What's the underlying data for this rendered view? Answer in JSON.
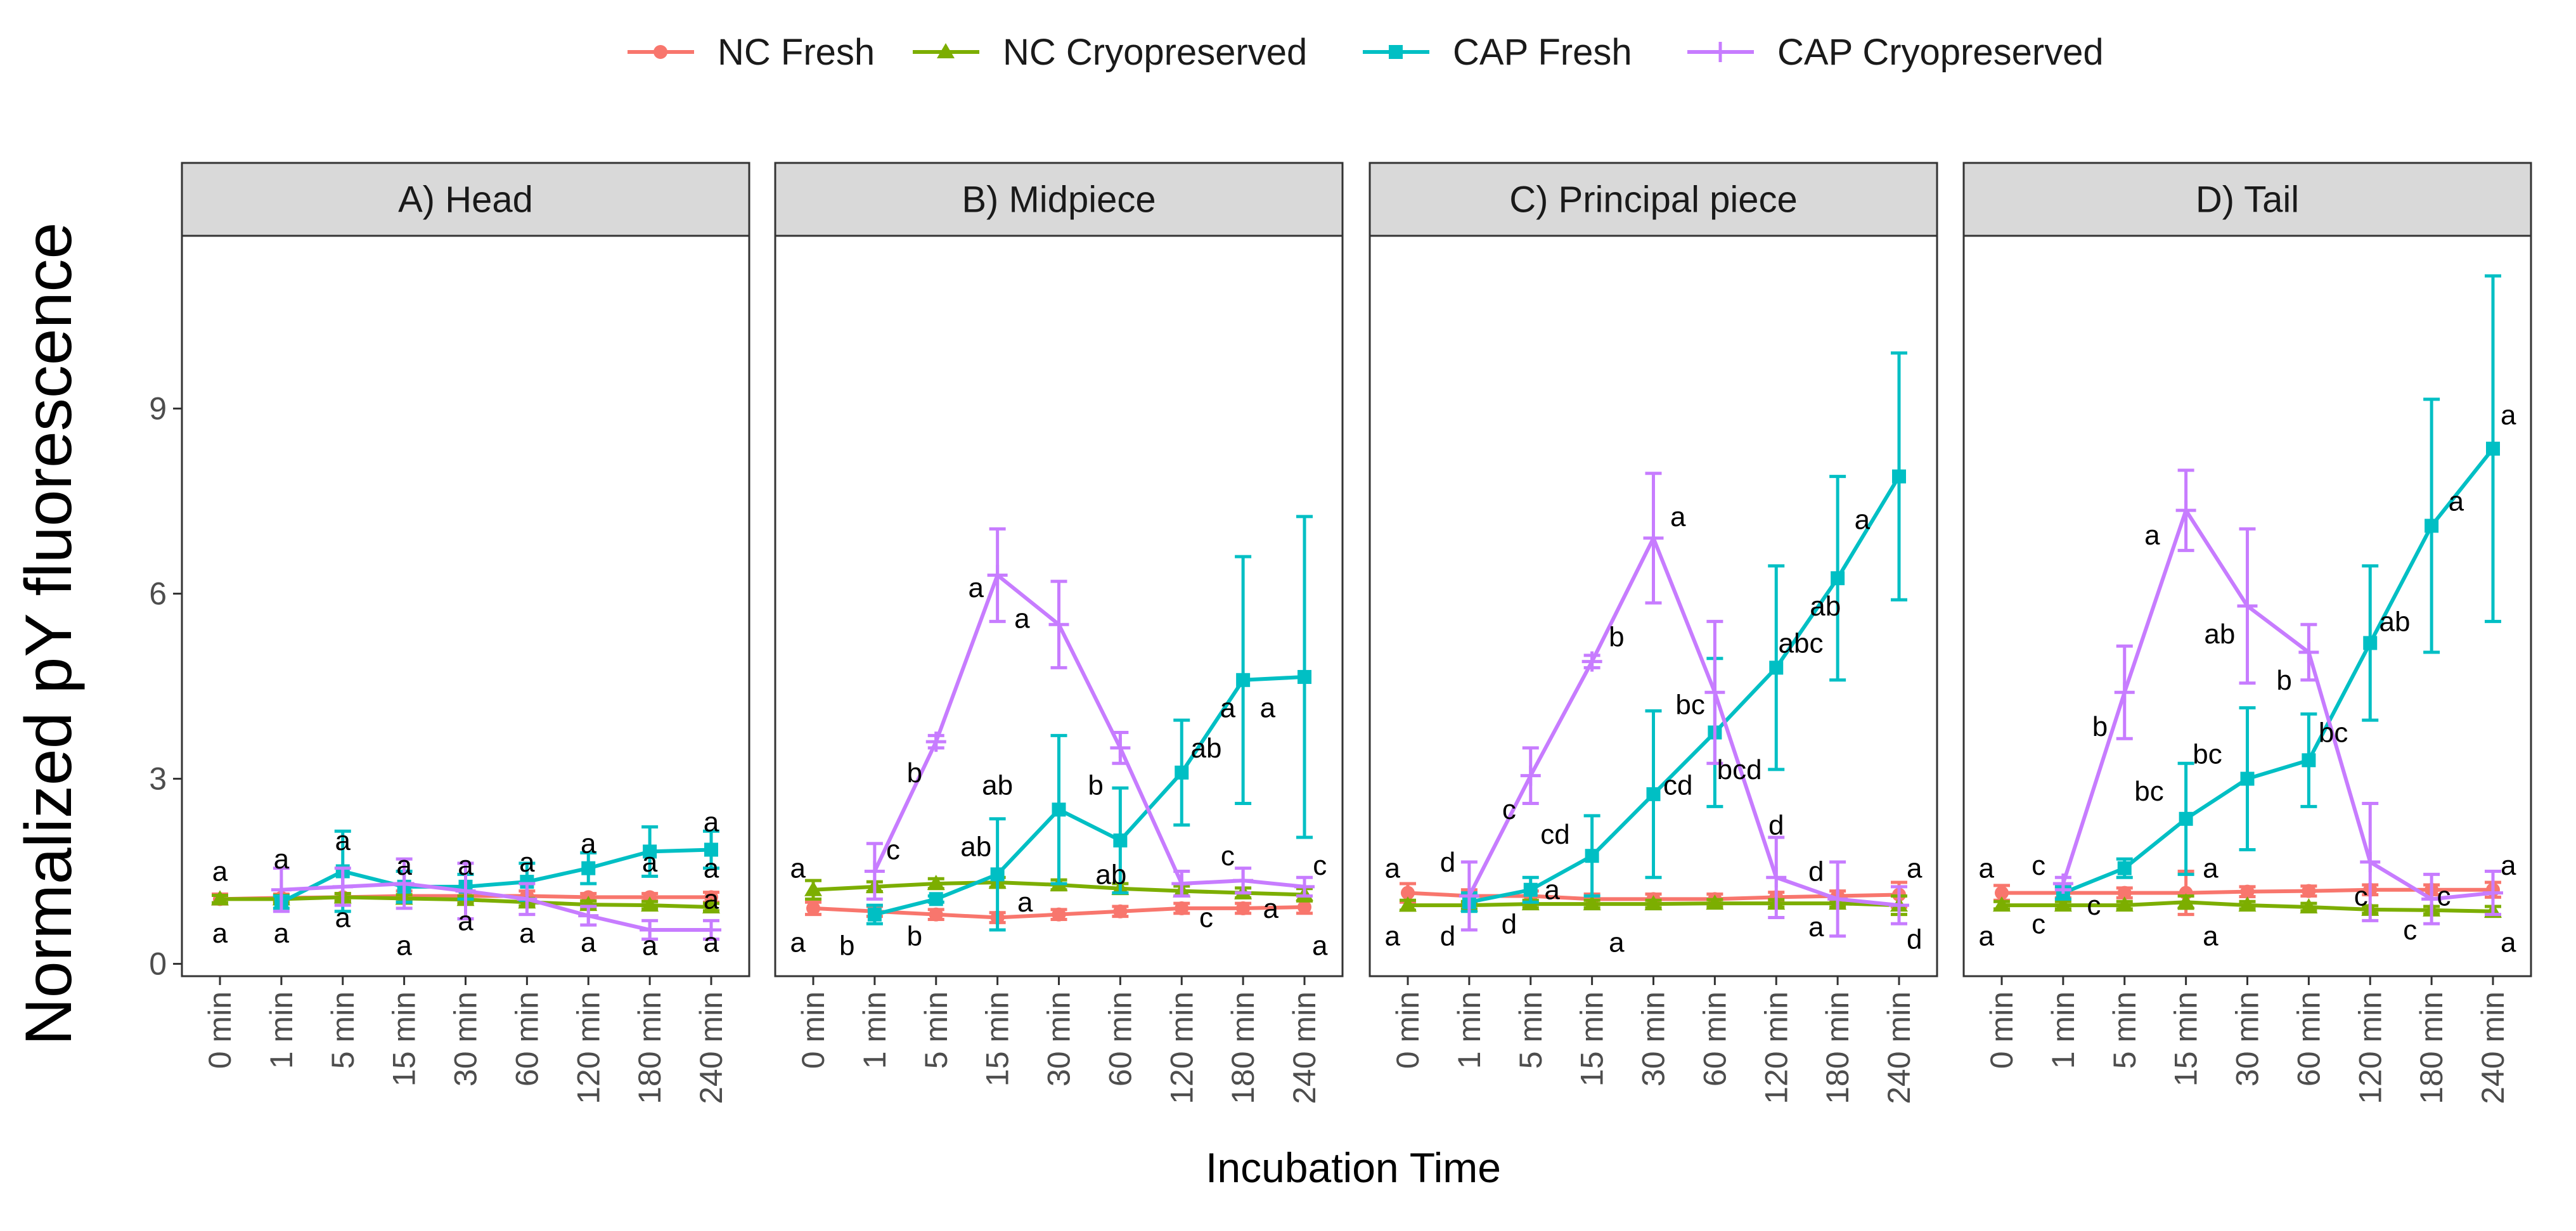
{
  "chart_data": {
    "type": "line",
    "ylabel": "Normalized pY fluorescence",
    "xlabel": "Incubation Time",
    "categories": [
      "0 min",
      "1 min",
      "5 min",
      "15 min",
      "30 min",
      "60 min",
      "120 min",
      "180 min",
      "240 min"
    ],
    "ylim": [
      -0.2,
      11.8
    ],
    "yticks": [
      0,
      3,
      6,
      9
    ],
    "grid": false,
    "legend_position": "top",
    "colors": {
      "NC Fresh": "#f8766d",
      "NC Cryopreserved": "#7cae00",
      "CAP Fresh": "#00bfc4",
      "CAP Cryopreserved": "#c77cff"
    },
    "legend": [
      {
        "name": "NC Fresh",
        "marker": "circle"
      },
      {
        "name": "NC Cryopreserved",
        "marker": "triangle"
      },
      {
        "name": "CAP Fresh",
        "marker": "square"
      },
      {
        "name": "CAP Cryopreserved",
        "marker": "cross"
      }
    ],
    "panels": [
      {
        "title": "A)  Head",
        "series": [
          {
            "name": "NC Fresh",
            "values": [
              1.05,
              1.07,
              1.08,
              1.1,
              1.1,
              1.1,
              1.08,
              1.08,
              1.08
            ],
            "err": [
              0.08,
              0.06,
              0.06,
              0.08,
              0.08,
              0.08,
              0.06,
              0.06,
              0.08
            ]
          },
          {
            "name": "NC Cryopreserved",
            "values": [
              1.05,
              1.05,
              1.08,
              1.06,
              1.04,
              1.0,
              0.96,
              0.95,
              0.92
            ],
            "err": [
              0.06,
              0.06,
              0.06,
              0.06,
              0.06,
              0.06,
              0.06,
              0.06,
              0.06
            ]
          },
          {
            "name": "CAP Fresh",
            "values": [
              null,
              1.0,
              1.5,
              1.25,
              1.25,
              1.33,
              1.55,
              1.82,
              1.85
            ],
            "err": [
              0,
              0.1,
              0.65,
              0.25,
              0.2,
              0.3,
              0.25,
              0.4,
              0.3
            ]
          },
          {
            "name": "CAP Cryopreserved",
            "values": [
              null,
              1.2,
              1.25,
              1.3,
              1.18,
              1.05,
              0.78,
              0.55,
              0.55
            ],
            "err": [
              0,
              0.35,
              0.3,
              0.4,
              0.45,
              0.25,
              0.15,
              0.15,
              0.15
            ]
          }
        ],
        "letters": [
          {
            "x": 0,
            "y": 1.5,
            "text": "a"
          },
          {
            "x": 0,
            "y": 0.5,
            "text": "a"
          },
          {
            "x": 1,
            "y": 1.7,
            "text": "a"
          },
          {
            "x": 1,
            "y": 0.5,
            "text": "a"
          },
          {
            "x": 2,
            "y": 2.0,
            "text": "a"
          },
          {
            "x": 2,
            "y": 0.75,
            "text": "a"
          },
          {
            "x": 3,
            "y": 1.6,
            "text": "a"
          },
          {
            "x": 3,
            "y": 1.6,
            "text": "a"
          },
          {
            "x": 3,
            "y": 0.3,
            "text": "a"
          },
          {
            "x": 4,
            "y": 1.6,
            "text": "a"
          },
          {
            "x": 4,
            "y": 0.7,
            "text": "a"
          },
          {
            "x": 5,
            "y": 1.65,
            "text": "a"
          },
          {
            "x": 5,
            "y": 0.5,
            "text": "a"
          },
          {
            "x": 6,
            "y": 1.95,
            "text": "a"
          },
          {
            "x": 6,
            "y": 0.35,
            "text": "a"
          },
          {
            "x": 7,
            "y": 1.65,
            "text": "a"
          },
          {
            "x": 7,
            "y": 0.3,
            "text": "a"
          },
          {
            "x": 8,
            "y": 2.3,
            "text": "a"
          },
          {
            "x": 8,
            "y": 1.55,
            "text": "a"
          },
          {
            "x": 8,
            "y": 1.05,
            "text": "a"
          },
          {
            "x": 8,
            "y": 0.35,
            "text": "a"
          }
        ]
      },
      {
        "title": "B)  Midpiece",
        "series": [
          {
            "name": "NC Fresh",
            "values": [
              0.9,
              0.85,
              0.8,
              0.75,
              0.8,
              0.85,
              0.9,
              0.9,
              0.92
            ],
            "err": [
              0.1,
              0.08,
              0.08,
              0.08,
              0.08,
              0.08,
              0.08,
              0.08,
              0.1
            ]
          },
          {
            "name": "NC Cryopreserved",
            "values": [
              1.2,
              1.25,
              1.3,
              1.32,
              1.28,
              1.22,
              1.18,
              1.15,
              1.12
            ],
            "err": [
              0.15,
              0.08,
              0.08,
              0.08,
              0.08,
              0.08,
              0.08,
              0.08,
              0.1
            ]
          },
          {
            "name": "CAP Fresh",
            "values": [
              null,
              0.8,
              1.05,
              1.45,
              2.5,
              2.0,
              3.1,
              4.6,
              4.65
            ],
            "err": [
              0,
              0.15,
              0.05,
              0.9,
              1.2,
              0.85,
              0.85,
              2.0,
              2.6
            ]
          },
          {
            "name": "CAP Cryopreserved",
            "values": [
              null,
              1.5,
              3.6,
              6.3,
              5.5,
              3.5,
              1.3,
              1.35,
              1.25
            ],
            "err": [
              0,
              0.45,
              0.1,
              0.75,
              0.7,
              0.25,
              0.2,
              0.2,
              0.15
            ]
          }
        ],
        "letters": [
          {
            "x": -0.25,
            "y": 1.55,
            "text": "a"
          },
          {
            "x": -0.25,
            "y": 0.35,
            "text": "a"
          },
          {
            "x": 0.55,
            "y": 0.3,
            "text": "b"
          },
          {
            "x": 1.3,
            "y": 1.85,
            "text": "c"
          },
          {
            "x": 1.65,
            "y": 3.1,
            "text": "b"
          },
          {
            "x": 1.65,
            "y": 0.45,
            "text": "b"
          },
          {
            "x": 2.65,
            "y": 6.1,
            "text": "a"
          },
          {
            "x": 2.65,
            "y": 1.9,
            "text": "ab"
          },
          {
            "x": 3.45,
            "y": 1.0,
            "text": "a"
          },
          {
            "x": 3.4,
            "y": 5.6,
            "text": "a"
          },
          {
            "x": 3.0,
            "y": 2.9,
            "text": "ab"
          },
          {
            "x": 4.6,
            "y": 2.9,
            "text": "b"
          },
          {
            "x": 4.85,
            "y": 1.45,
            "text": "ab"
          },
          {
            "x": 6.4,
            "y": 3.5,
            "text": "ab"
          },
          {
            "x": 6.4,
            "y": 0.75,
            "text": "c"
          },
          {
            "x": 6.75,
            "y": 4.15,
            "text": "a"
          },
          {
            "x": 6.75,
            "y": 1.75,
            "text": "c"
          },
          {
            "x": 7.4,
            "y": 4.15,
            "text": "a"
          },
          {
            "x": 7.45,
            "y": 0.9,
            "text": "a"
          },
          {
            "x": 8.25,
            "y": 1.6,
            "text": "c"
          },
          {
            "x": 8.25,
            "y": 0.3,
            "text": "a"
          }
        ]
      },
      {
        "title": "C)  Principal piece",
        "series": [
          {
            "name": "NC Fresh",
            "values": [
              1.15,
              1.1,
              1.1,
              1.05,
              1.05,
              1.05,
              1.08,
              1.1,
              1.12
            ],
            "err": [
              0.15,
              0.1,
              0.08,
              0.08,
              0.08,
              0.08,
              0.08,
              0.08,
              0.2
            ]
          },
          {
            "name": "NC Cryopreserved",
            "values": [
              0.95,
              0.95,
              0.97,
              0.97,
              0.97,
              0.98,
              0.98,
              0.98,
              0.95
            ],
            "err": [
              0.08,
              0.06,
              0.06,
              0.06,
              0.06,
              0.06,
              0.06,
              0.06,
              0.15
            ]
          },
          {
            "name": "CAP Fresh",
            "values": [
              null,
              1.0,
              1.2,
              1.75,
              2.75,
              3.75,
              4.8,
              6.25,
              7.9
            ],
            "err": [
              0,
              0.15,
              0.2,
              0.65,
              1.35,
              1.2,
              1.65,
              1.65,
              2.0
            ]
          },
          {
            "name": "CAP Cryopreserved",
            "values": [
              null,
              1.1,
              3.05,
              4.9,
              6.9,
              4.4,
              1.4,
              1.05,
              0.95
            ],
            "err": [
              0,
              0.55,
              0.45,
              0.1,
              1.05,
              1.15,
              0.65,
              0.6,
              0.3
            ]
          }
        ],
        "letters": [
          {
            "x": -0.25,
            "y": 1.55,
            "text": "a"
          },
          {
            "x": -0.25,
            "y": 0.45,
            "text": "a"
          },
          {
            "x": 0.65,
            "y": 1.65,
            "text": "d"
          },
          {
            "x": 0.65,
            "y": 0.45,
            "text": "d"
          },
          {
            "x": 1.65,
            "y": 0.65,
            "text": "d"
          },
          {
            "x": 1.65,
            "y": 2.5,
            "text": "c"
          },
          {
            "x": 2.35,
            "y": 1.2,
            "text": "a"
          },
          {
            "x": 2.4,
            "y": 2.1,
            "text": "cd"
          },
          {
            "x": 3.4,
            "y": 0.35,
            "text": "a"
          },
          {
            "x": 3.4,
            "y": 5.3,
            "text": "b"
          },
          {
            "x": 4.4,
            "y": 2.9,
            "text": "cd"
          },
          {
            "x": 4.4,
            "y": 7.25,
            "text": "a"
          },
          {
            "x": 4.6,
            "y": 4.2,
            "text": "bc"
          },
          {
            "x": 5.4,
            "y": 3.15,
            "text": "bcd"
          },
          {
            "x": 6.4,
            "y": 5.2,
            "text": "abc"
          },
          {
            "x": 6.0,
            "y": 2.25,
            "text": "d"
          },
          {
            "x": 6.65,
            "y": 1.5,
            "text": "d"
          },
          {
            "x": 6.8,
            "y": 5.8,
            "text": "ab"
          },
          {
            "x": 7.4,
            "y": 7.2,
            "text": "a"
          },
          {
            "x": 6.65,
            "y": 0.6,
            "text": "a"
          },
          {
            "x": 8.25,
            "y": 1.55,
            "text": "a"
          },
          {
            "x": 8.25,
            "y": 0.4,
            "text": "d"
          }
        ]
      },
      {
        "title": "D)  Tail",
        "series": [
          {
            "name": "NC Fresh",
            "values": [
              1.15,
              1.15,
              1.15,
              1.15,
              1.17,
              1.18,
              1.2,
              1.2,
              1.2
            ],
            "err": [
              0.12,
              0.08,
              0.08,
              0.35,
              0.08,
              0.08,
              0.08,
              0.08,
              0.12
            ]
          },
          {
            "name": "NC Cryopreserved",
            "values": [
              0.95,
              0.95,
              0.95,
              1.0,
              0.95,
              0.92,
              0.88,
              0.87,
              0.85
            ],
            "err": [
              0.06,
              0.06,
              0.06,
              0.1,
              0.06,
              0.06,
              0.06,
              0.06,
              0.08
            ]
          },
          {
            "name": "CAP Fresh",
            "values": [
              null,
              1.15,
              1.55,
              2.35,
              3.0,
              3.3,
              5.2,
              7.1,
              8.35
            ],
            "err": [
              0,
              0.1,
              0.15,
              0.9,
              1.15,
              0.75,
              1.25,
              2.05,
              2.8
            ]
          },
          {
            "name": "CAP Cryopreserved",
            "values": [
              null,
              1.3,
              4.4,
              7.35,
              5.8,
              5.05,
              1.65,
              1.05,
              1.15
            ],
            "err": [
              0,
              0.1,
              0.75,
              0.65,
              1.25,
              0.45,
              0.95,
              0.4,
              0.35
            ]
          }
        ],
        "letters": [
          {
            "x": -0.25,
            "y": 1.55,
            "text": "a"
          },
          {
            "x": -0.25,
            "y": 0.45,
            "text": "a"
          },
          {
            "x": 0.6,
            "y": 1.6,
            "text": "c"
          },
          {
            "x": 0.6,
            "y": 0.65,
            "text": "c"
          },
          {
            "x": 1.5,
            "y": 0.95,
            "text": "c"
          },
          {
            "x": 1.6,
            "y": 3.85,
            "text": "b"
          },
          {
            "x": 2.4,
            "y": 2.8,
            "text": "bc"
          },
          {
            "x": 2.45,
            "y": 6.95,
            "text": "a"
          },
          {
            "x": 3.4,
            "y": 1.55,
            "text": "a"
          },
          {
            "x": 3.4,
            "y": 0.45,
            "text": "a"
          },
          {
            "x": 3.35,
            "y": 3.4,
            "text": "bc"
          },
          {
            "x": 3.55,
            "y": 5.35,
            "text": "ab"
          },
          {
            "x": 4.6,
            "y": 4.6,
            "text": "b"
          },
          {
            "x": 5.4,
            "y": 3.75,
            "text": "bc"
          },
          {
            "x": 5.85,
            "y": 1.1,
            "text": "c"
          },
          {
            "x": 6.4,
            "y": 5.55,
            "text": "ab"
          },
          {
            "x": 6.65,
            "y": 0.55,
            "text": "c"
          },
          {
            "x": 7.2,
            "y": 1.1,
            "text": "c"
          },
          {
            "x": 7.4,
            "y": 7.5,
            "text": "a"
          },
          {
            "x": 8.25,
            "y": 8.9,
            "text": "a"
          },
          {
            "x": 8.25,
            "y": 1.6,
            "text": "a"
          },
          {
            "x": 8.25,
            "y": 0.35,
            "text": "a"
          }
        ]
      }
    ]
  }
}
